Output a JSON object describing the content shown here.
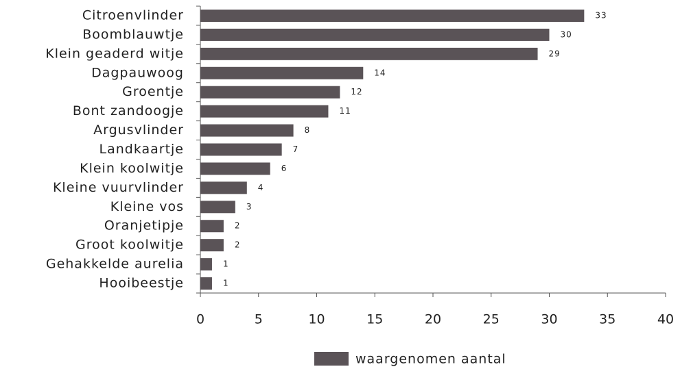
{
  "chart_data": {
    "type": "bar",
    "orientation": "horizontal",
    "categories": [
      "Citroenvlinder",
      "Boomblauwtje",
      "Klein geaderd witje",
      "Dagpauwoog",
      "Groentje",
      "Bont zandoogje",
      "Argusvlinder",
      "Landkaartje",
      "Klein koolwitje",
      "Kleine vuurvlinder",
      "Kleine vos",
      "Oranjetipje",
      "Groot koolwitje",
      "Gehakkelde aurelia",
      "Hooibeestje"
    ],
    "series": [
      {
        "name": "waargenomen aantal",
        "color": "#5a5357",
        "values": [
          33,
          30,
          29,
          14,
          12,
          11,
          8,
          7,
          6,
          4,
          3,
          2,
          2,
          1,
          1
        ]
      }
    ],
    "xlim": [
      0,
      40
    ],
    "xticks": [
      0,
      5,
      10,
      15,
      20,
      25,
      30,
      35,
      40
    ],
    "legend": "bottom"
  }
}
